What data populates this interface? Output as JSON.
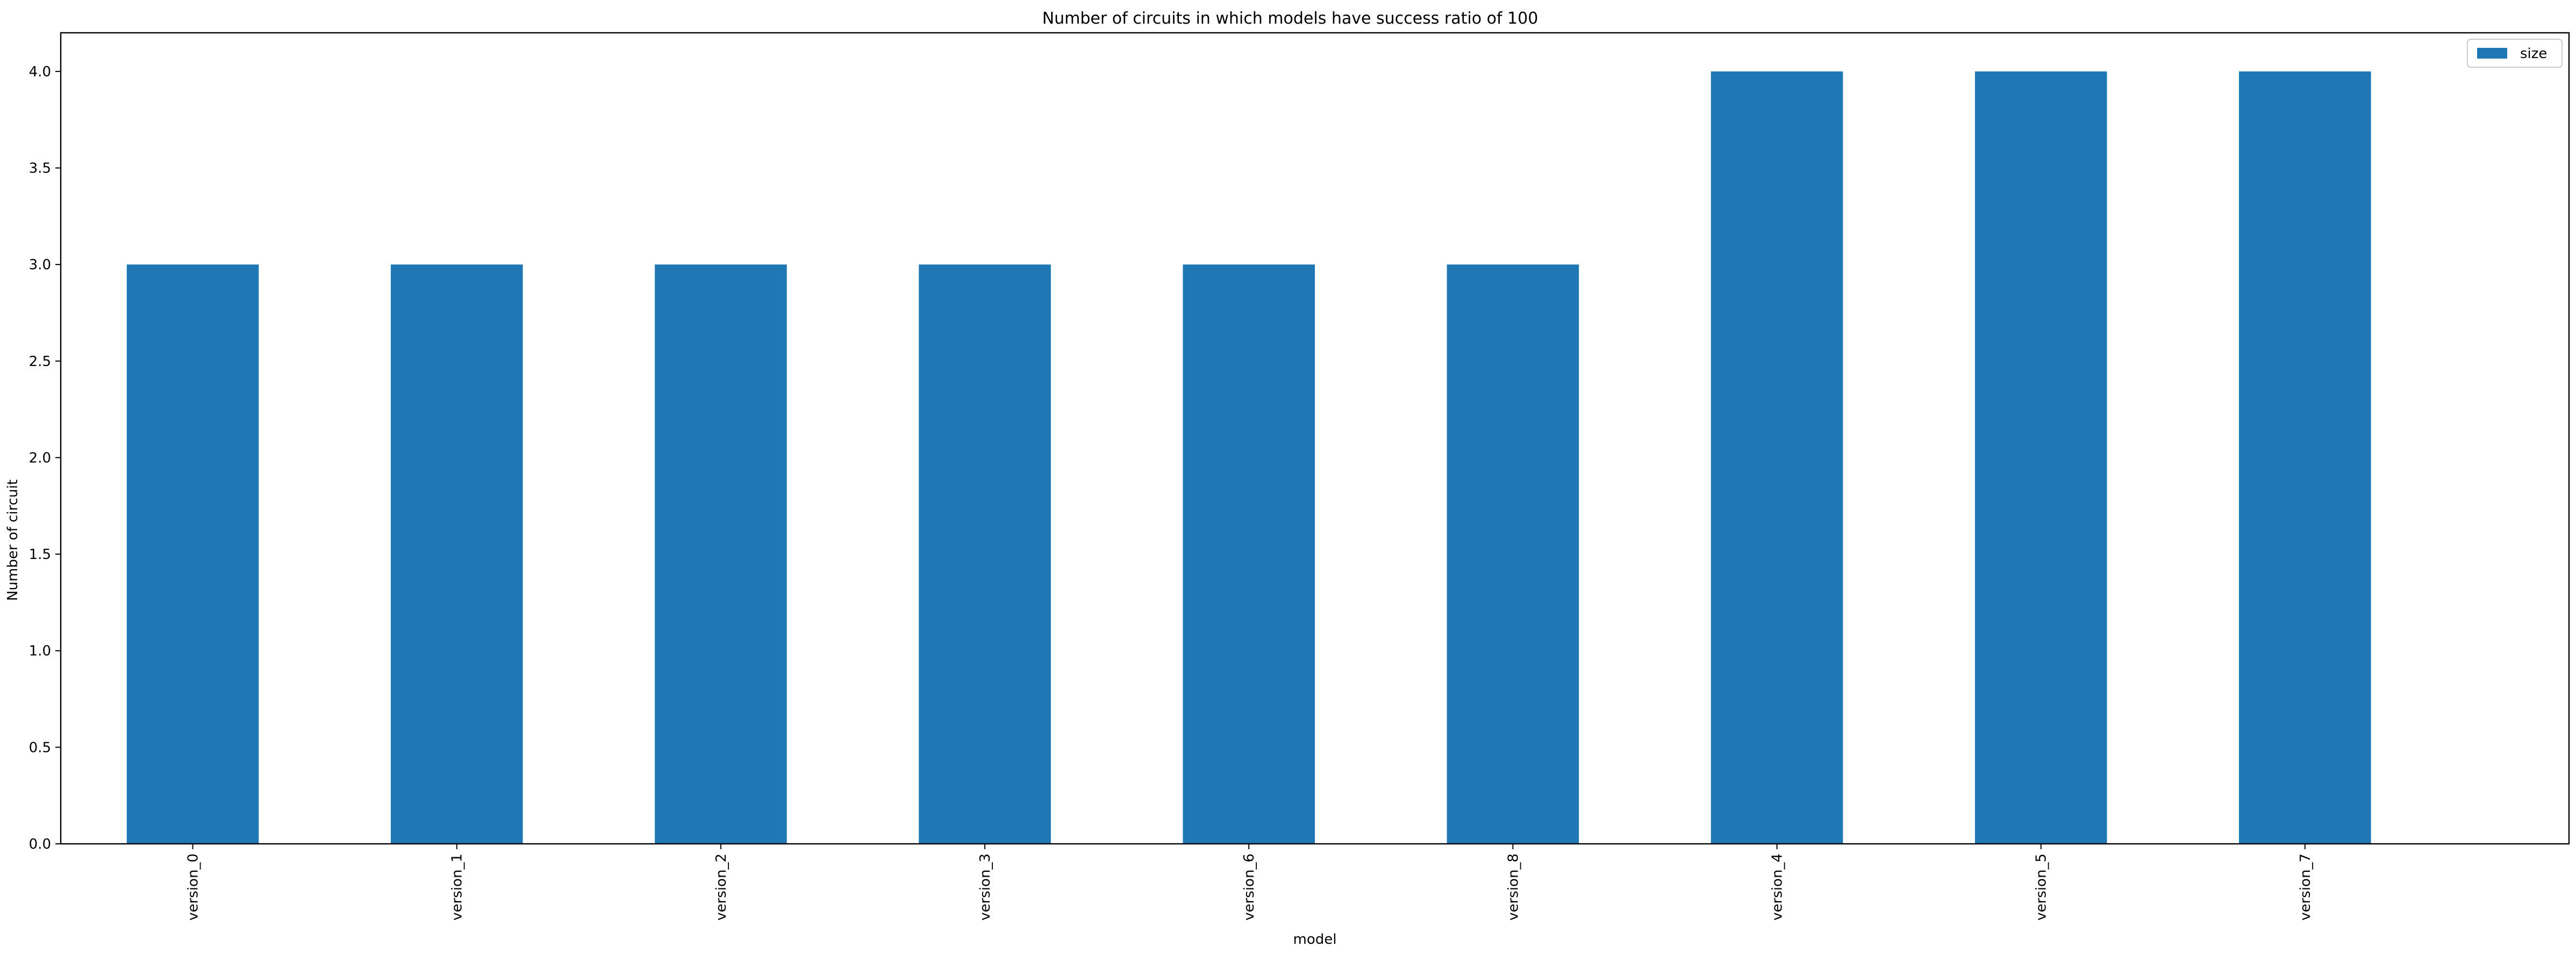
{
  "chart_data": {
    "type": "bar",
    "title": "Number of circuits in which models have success ratio of 100",
    "xlabel": "model",
    "ylabel": "Number of circuit",
    "categories": [
      "version_0",
      "version_1",
      "version_2",
      "version_3",
      "version_6",
      "version_8",
      "version_4",
      "version_5",
      "version_7"
    ],
    "series": [
      {
        "name": "size",
        "values": [
          3,
          3,
          3,
          3,
          3,
          3,
          4,
          4,
          4
        ],
        "color": "#1f77b4"
      }
    ],
    "ylim": [
      0,
      4.2
    ],
    "yticks": [
      0.0,
      0.5,
      1.0,
      1.5,
      2.0,
      2.5,
      3.0,
      3.5,
      4.0
    ],
    "ytick_labels": [
      "0.0",
      "0.5",
      "1.0",
      "1.5",
      "2.0",
      "2.5",
      "3.0",
      "3.5",
      "4.0"
    ],
    "grid": false,
    "legend_position": "top-right"
  }
}
